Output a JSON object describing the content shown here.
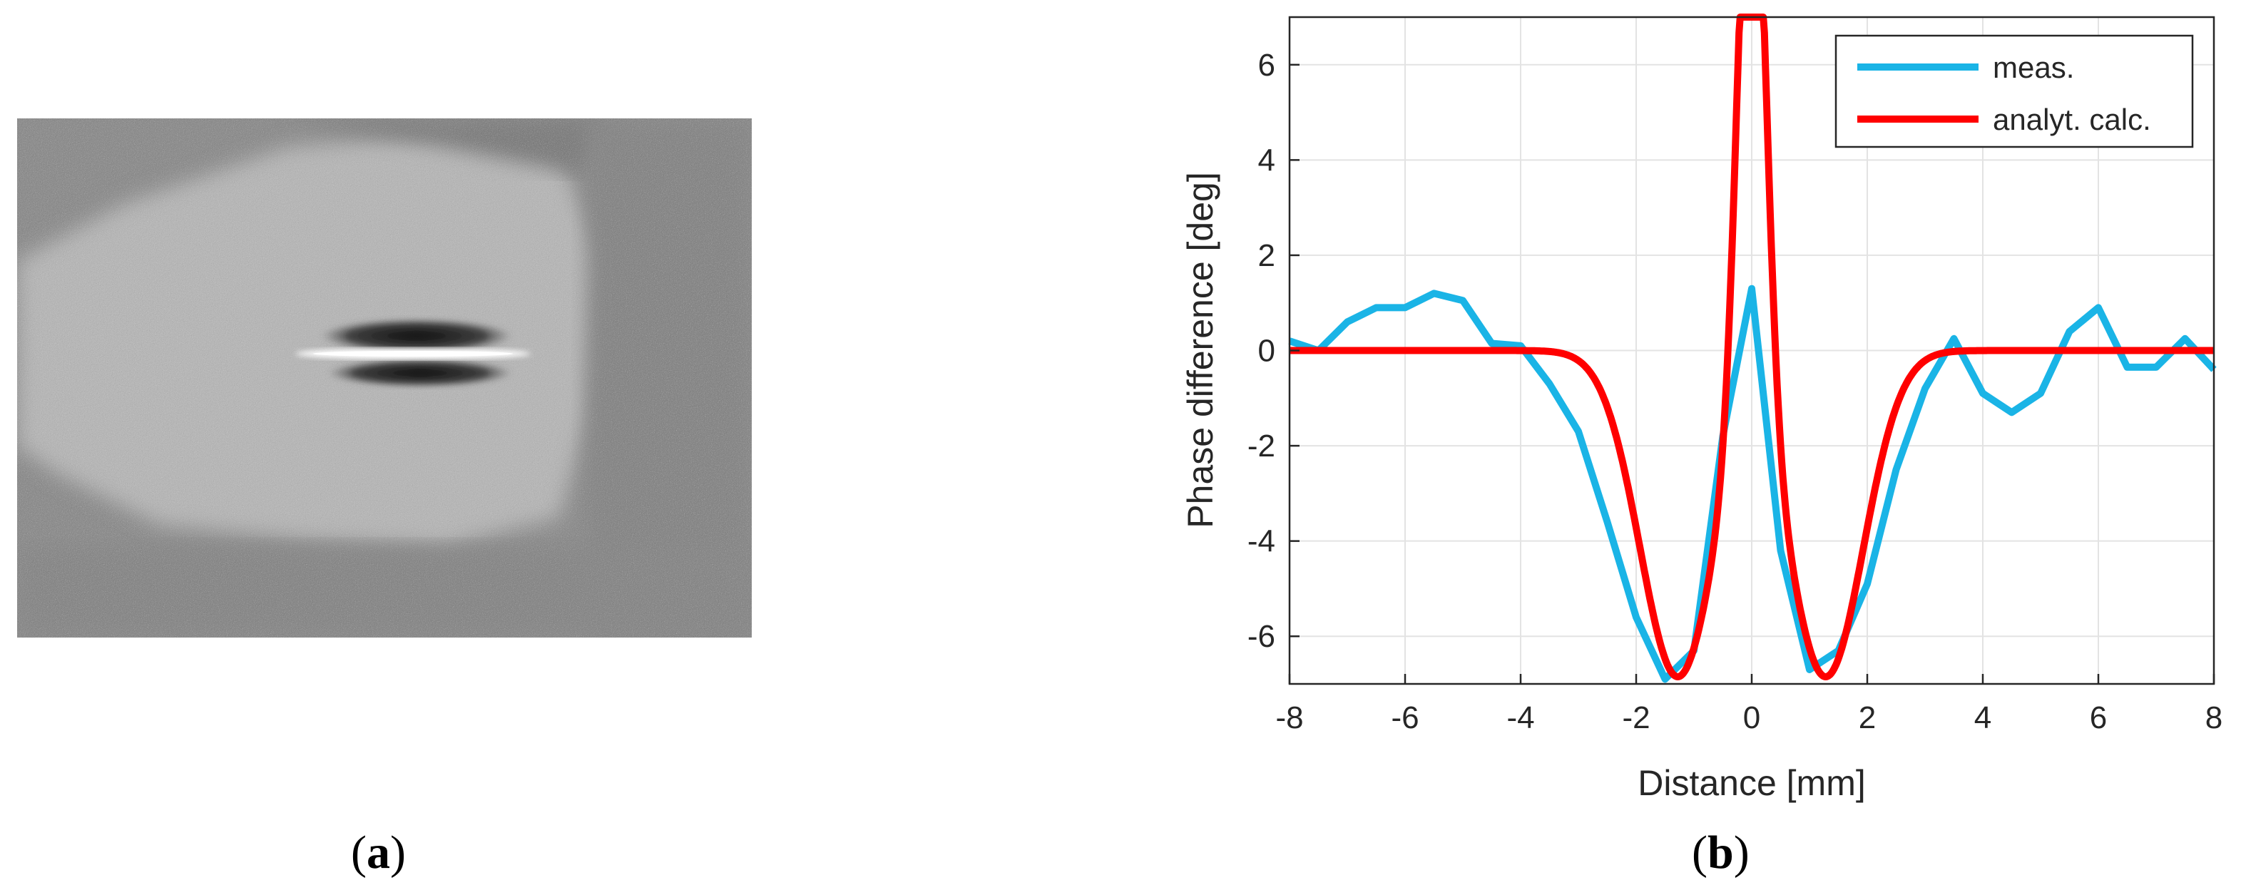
{
  "panels": {
    "a": {
      "open": "(",
      "letter": "a",
      "close": ")"
    },
    "b": {
      "open": "(",
      "letter": "b",
      "close": ")"
    }
  },
  "image_panel": {
    "description_colors": {
      "background": "#8f8f8f",
      "bright_region": "#b9b9b9",
      "dark_streak": "#1a1a1a",
      "white_streak": "#ffffff"
    }
  },
  "chart_data": {
    "type": "line",
    "xlabel": "Distance [mm]",
    "ylabel": "Phase difference [deg]",
    "xlim": [
      -8,
      8
    ],
    "ylim": [
      -7,
      7
    ],
    "xticks": [
      -8,
      -6,
      -4,
      -2,
      0,
      2,
      4,
      6,
      8
    ],
    "yticks": [
      -6,
      -4,
      -2,
      0,
      2,
      4,
      6
    ],
    "grid": true,
    "legend_position": "top-right",
    "series": [
      {
        "name": "meas.",
        "color": "#1ab4e6",
        "x": [
          -8,
          -7.5,
          -7,
          -6.5,
          -6,
          -5.5,
          -5,
          -4.5,
          -4,
          -3.5,
          -3,
          -2.5,
          -2,
          -1.5,
          -1,
          -0.5,
          0,
          0.5,
          1,
          1.5,
          2,
          2.5,
          3,
          3.5,
          4,
          4.5,
          5,
          5.5,
          6,
          6.5,
          7,
          7.5,
          8
        ],
        "y": [
          0.2,
          0.0,
          0.6,
          0.9,
          0.9,
          1.2,
          1.05,
          0.15,
          0.1,
          -0.7,
          -1.7,
          -3.6,
          -5.6,
          -6.9,
          -6.3,
          -1.8,
          1.3,
          -4.2,
          -6.7,
          -6.3,
          -4.9,
          -2.5,
          -0.8,
          0.25,
          -0.9,
          -1.3,
          -0.9,
          0.4,
          0.9,
          -0.35,
          -0.35,
          0.25,
          -0.4
        ]
      },
      {
        "name": "analyt. calc.",
        "color": "#ff0000",
        "model": "double-peak profile"
      }
    ]
  }
}
